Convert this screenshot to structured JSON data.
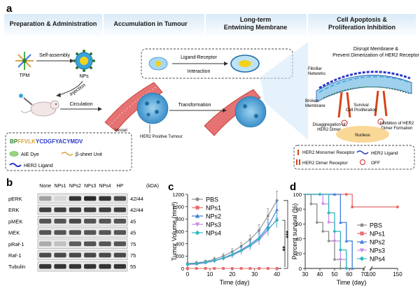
{
  "panel_a": {
    "letter": "a",
    "sections": [
      "Preparation & Administration",
      "Accumulation in Tumour",
      "Long-term",
      "Entwining Membrane",
      "Cell Apoptosis &",
      "Proliferation Inhibition"
    ],
    "tpm": "TPM",
    "self_assembly": "Self-assembly",
    "nps": "NPs",
    "injection": "Injection",
    "circulation": "Circulation",
    "vessel": "Vessel",
    "tumour": "HER2 Positive Tumour",
    "transformation": "Transformation",
    "ligand_receptor_1": "Ligand-Receptor",
    "ligand_receptor_2": "Interaction",
    "disrupt_1": "Disrupt Membrane &",
    "disrupt_2": "Prevent Dimerization of HER2 Receptor",
    "fibrillar_1": "Fibrillar",
    "fibrillar_2": "Networks",
    "broken_1": "Broken",
    "broken_2": "Membrane",
    "survival_1": "Survival",
    "survival_2": "Cell Proliferation",
    "disagg_1": "Disaggregation of",
    "disagg_2": "HER2 Dimer",
    "inhib_1": "Inhibition of HER2",
    "inhib_2": "Dimer Formation",
    "nucleus": "Nucleus",
    "sequence_prefix": "BP",
    "sequence_beta": "FFVLK",
    "sequence_ligand": "YCDGFYACYMDV",
    "legend_left": {
      "aie": "AIE Dye",
      "beta": "β-sheet Unit",
      "ligand": "HER2 Ligand"
    },
    "legend_right": {
      "monomer": "HER2 Monomer Receptor",
      "dimer": "HER2 Dimer Receptor",
      "her2_ligand": "HER2 Ligand",
      "off": "OFF"
    }
  },
  "panel_b": {
    "letter": "b",
    "columns": [
      "None",
      "NPs1",
      "NPs2",
      "NPs3",
      "NPs4",
      "HP"
    ],
    "unit_header": "(kDA)",
    "rows": [
      {
        "name": "pERK",
        "kda": "42/44",
        "intensity": [
          0.35,
          0.1,
          0.85,
          0.9,
          0.85,
          0.75
        ]
      },
      {
        "name": "ERK",
        "kda": "42/44",
        "intensity": [
          0.8,
          0.8,
          0.8,
          0.8,
          0.8,
          0.8
        ]
      },
      {
        "name": "pMEK",
        "kda": "45",
        "intensity": [
          0.7,
          0.7,
          0.75,
          0.7,
          0.7,
          0.7
        ]
      },
      {
        "name": "MEK",
        "kda": "45",
        "intensity": [
          0.7,
          0.7,
          0.7,
          0.7,
          0.7,
          0.7
        ]
      },
      {
        "name": "pRaf-1",
        "kda": "75",
        "intensity": [
          0.3,
          0.2,
          0.65,
          0.7,
          0.7,
          0.7
        ]
      },
      {
        "name": "Raf-1",
        "kda": "75",
        "intensity": [
          0.75,
          0.75,
          0.75,
          0.75,
          0.75,
          0.75
        ]
      },
      {
        "name": "Tubulin",
        "kda": "55",
        "intensity": [
          0.85,
          0.85,
          0.85,
          0.85,
          0.85,
          0.85
        ]
      }
    ]
  },
  "chart_data": [
    {
      "letter": "c",
      "type": "line",
      "xlabel": "Time (day)",
      "ylabel": "Tumor Volume (mm³)",
      "xlim": [
        0,
        42
      ],
      "ylim": [
        0,
        1200
      ],
      "xticks": [
        "0",
        "10",
        "20",
        "30",
        "40"
      ],
      "xtick_values": [
        0,
        10,
        20,
        30,
        40
      ],
      "yticks": [
        "0",
        "200",
        "400",
        "600",
        "800",
        "1000",
        "1200"
      ],
      "ytick_values": [
        0,
        200,
        400,
        600,
        800,
        1000,
        1200
      ],
      "legend_placement": "top-left",
      "x": [
        0,
        4,
        8,
        12,
        16,
        20,
        24,
        28,
        32,
        36,
        40
      ],
      "series": [
        {
          "name": "PBS",
          "color": "#8c8c8c",
          "marker": "circle",
          "values": [
            80,
            90,
            110,
            150,
            200,
            270,
            360,
            470,
            620,
            850,
            1100
          ],
          "err": [
            20,
            25,
            25,
            30,
            40,
            50,
            60,
            70,
            90,
            120,
            150
          ]
        },
        {
          "name": "NPs1",
          "color": "#e86a6a",
          "marker": "square",
          "values": [
            0,
            0,
            0,
            0,
            0,
            0,
            0,
            0,
            0,
            0,
            0
          ],
          "err": [
            0,
            0,
            0,
            0,
            0,
            0,
            0,
            0,
            0,
            0,
            0
          ]
        },
        {
          "name": "NPs2",
          "color": "#3d7fd6",
          "marker": "triangle",
          "values": [
            70,
            80,
            100,
            130,
            170,
            230,
            300,
            390,
            500,
            680,
            950
          ],
          "err": [
            20,
            20,
            25,
            30,
            35,
            45,
            55,
            70,
            90,
            110,
            140
          ]
        },
        {
          "name": "NPs3",
          "color": "#c98ae6",
          "marker": "triangle-down",
          "values": [
            60,
            70,
            90,
            120,
            160,
            210,
            280,
            360,
            460,
            620,
            800
          ],
          "err": [
            20,
            20,
            25,
            30,
            35,
            45,
            55,
            65,
            85,
            100,
            130
          ]
        },
        {
          "name": "NPs4",
          "color": "#30b8bf",
          "marker": "diamond",
          "values": [
            70,
            75,
            95,
            125,
            165,
            220,
            290,
            370,
            480,
            640,
            780
          ],
          "err": [
            20,
            20,
            25,
            30,
            35,
            45,
            55,
            65,
            85,
            100,
            120
          ]
        }
      ],
      "significance": [
        {
          "label": "***",
          "between": [
            "PBS",
            "NPs1"
          ]
        },
        {
          "label": "**",
          "between": [
            "NPs4",
            "NPs1"
          ]
        }
      ]
    },
    {
      "letter": "d",
      "type": "line",
      "xlabel": "Time (day)",
      "ylabel": "Percent survival (%)",
      "ylim": [
        0,
        100
      ],
      "xticks": [
        "30",
        "40",
        "50",
        "60",
        "70",
        "100",
        "150"
      ],
      "xtick_values": [
        30,
        40,
        50,
        60,
        70,
        100,
        150
      ],
      "yticks": [
        "0",
        "20",
        "40",
        "60",
        "80",
        "100"
      ],
      "ytick_values": [
        0,
        20,
        40,
        60,
        80,
        100
      ],
      "axis_break": true,
      "legend_placement": "bottom-right",
      "series": [
        {
          "name": "PBS",
          "color": "#8c8c8c",
          "marker": "circle",
          "steps": [
            [
              30,
              100
            ],
            [
              34,
              87
            ],
            [
              38,
              62
            ],
            [
              42,
              50
            ],
            [
              46,
              37
            ],
            [
              50,
              12
            ],
            [
              54,
              0
            ]
          ]
        },
        {
          "name": "NPs1",
          "color": "#e86a6a",
          "marker": "square",
          "steps": [
            [
              30,
              100
            ],
            [
              58,
              100
            ],
            [
              62,
              83
            ],
            [
              150,
              83
            ]
          ]
        },
        {
          "name": "NPs2",
          "color": "#3d7fd6",
          "marker": "triangle",
          "steps": [
            [
              30,
              100
            ],
            [
              50,
              100
            ],
            [
              54,
              62
            ],
            [
              58,
              37
            ],
            [
              62,
              0
            ]
          ]
        },
        {
          "name": "NPs3",
          "color": "#c98ae6",
          "marker": "triangle-down",
          "steps": [
            [
              30,
              100
            ],
            [
              42,
              87
            ],
            [
              46,
              62
            ],
            [
              50,
              37
            ],
            [
              54,
              12
            ],
            [
              58,
              0
            ]
          ]
        },
        {
          "name": "NPs4",
          "color": "#30b8bf",
          "marker": "diamond",
          "steps": [
            [
              30,
              100
            ],
            [
              40,
              100
            ],
            [
              46,
              75
            ],
            [
              50,
              50
            ],
            [
              54,
              25
            ],
            [
              58,
              0
            ]
          ]
        }
      ]
    }
  ]
}
